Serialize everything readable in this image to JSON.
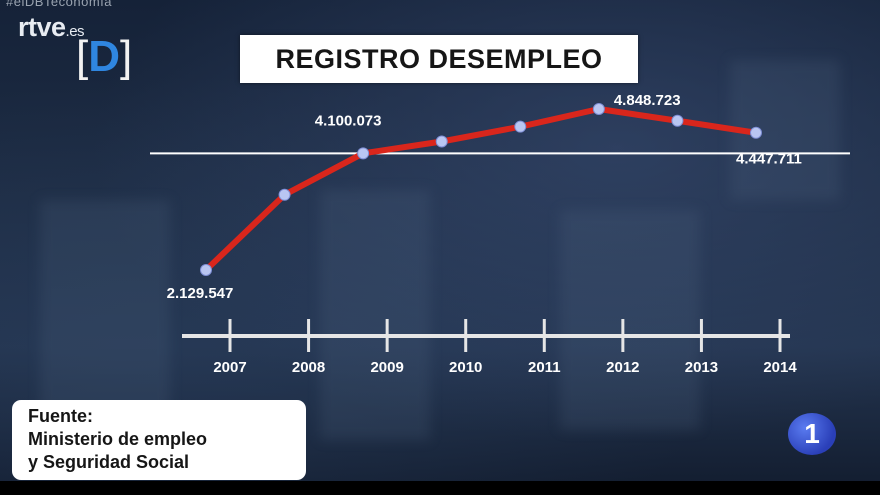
{
  "broadcast": {
    "hashtag": "#elDBTeconomía",
    "channel_logo": "rtve",
    "channel_logo_suffix": ".es",
    "program_logo": "D",
    "channel_number": "1"
  },
  "source": {
    "line1": "Fuente:",
    "line2": "Ministerio de empleo",
    "line3": "y Seguridad Social"
  },
  "colors": {
    "line": "#d9261c",
    "marker": "#b9c6f2",
    "reference_line": "#ffffff",
    "title_box": "#ffffff"
  },
  "chart_data": {
    "type": "line",
    "title": "REGISTRO DESEMPLEO",
    "xlabel": "",
    "ylabel": "",
    "categories": [
      "2007",
      "2008",
      "2009",
      "2010",
      "2011",
      "2012",
      "2013",
      "2014"
    ],
    "values": [
      2129547,
      3400000,
      4100073,
      4300000,
      4550000,
      4848723,
      4650000,
      4447711
    ],
    "data_labels": [
      {
        "year": "2007",
        "text": "2.129.547"
      },
      {
        "year": "2009",
        "text": "4.100.073"
      },
      {
        "year": "2012",
        "text": "4.848.723"
      },
      {
        "year": "2014",
        "text": "4.447.711"
      }
    ],
    "reference_line": 4100073,
    "grid": false,
    "legend": "none"
  }
}
